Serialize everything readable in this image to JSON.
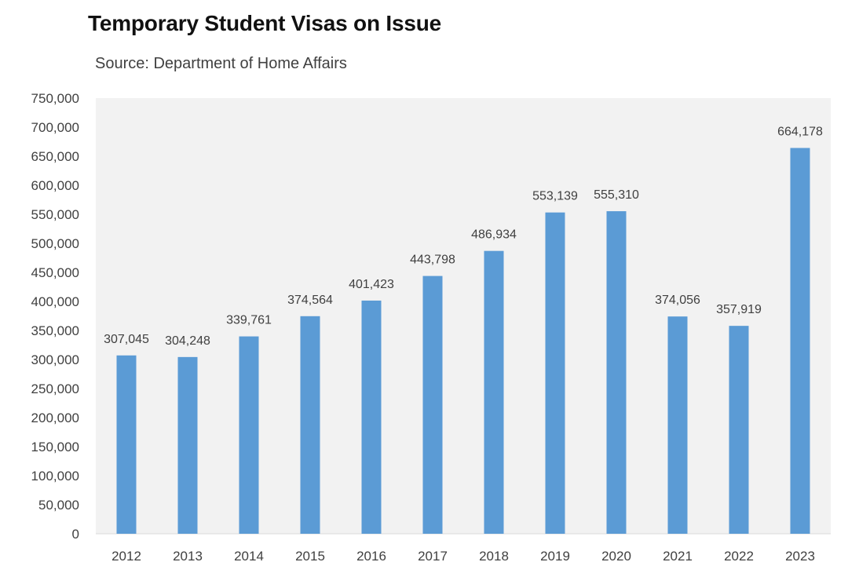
{
  "chart_data": {
    "type": "bar",
    "title": "Temporary Student Visas on Issue",
    "subtitle": "Source: Department of Home Affairs",
    "xlabel": "",
    "ylabel": "",
    "categories": [
      "2012",
      "2013",
      "2014",
      "2015",
      "2016",
      "2017",
      "2018",
      "2019",
      "2020",
      "2021",
      "2022",
      "2023"
    ],
    "values": [
      307045,
      304248,
      339761,
      374564,
      401423,
      443798,
      486934,
      553139,
      555310,
      374056,
      357919,
      664178
    ],
    "data_labels": [
      "307,045",
      "304,248",
      "339,761",
      "374,564",
      "401,423",
      "443,798",
      "486,934",
      "553,139",
      "555,310",
      "374,056",
      "357,919",
      "664,178"
    ],
    "ylim": [
      0,
      750000
    ],
    "ytick_values": [
      0,
      50000,
      100000,
      150000,
      200000,
      250000,
      300000,
      350000,
      400000,
      450000,
      500000,
      550000,
      600000,
      650000,
      700000,
      750000
    ],
    "ytick_labels": [
      "0",
      "50,000",
      "100,000",
      "150,000",
      "200,000",
      "250,000",
      "300,000",
      "350,000",
      "400,000",
      "450,000",
      "500,000",
      "550,000",
      "600,000",
      "650,000",
      "700,000",
      "750,000"
    ],
    "grid": false,
    "legend": "none",
    "colors": {
      "bar": "#5b9bd5",
      "plot_background": "#f2f2f2",
      "text": "#404040"
    }
  }
}
